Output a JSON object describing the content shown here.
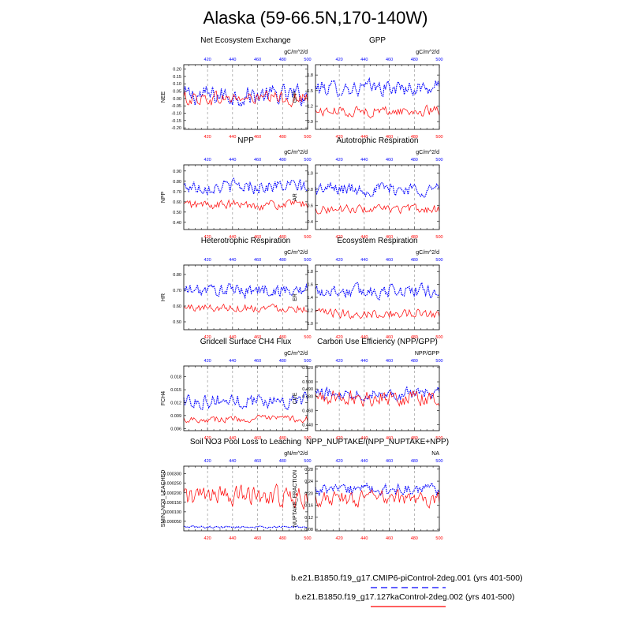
{
  "title": "Alaska (59-66.5N,170-140W)",
  "legend": [
    {
      "label": "b.e21.B1850.f19_g17.CMIP6-piControl-2deg.001 (yrs 401-500)",
      "color": "#0000ff",
      "style": "dashed"
    },
    {
      "label": "b.e21.B1850.f19_g17.127kaControl-2deg.002 (yrs 401-500)",
      "color": "#ff0000",
      "style": "solid"
    }
  ],
  "chart_data": [
    {
      "type": "line",
      "title": "Net Ecosystem Exchange",
      "units": "gC/m^2/d",
      "ylabel": "NEE",
      "xlim": [
        401,
        500
      ],
      "ylim": [
        -0.21,
        0.23
      ],
      "yticks": [
        0.2,
        0.15,
        0.1,
        0.05,
        0.0,
        -0.05,
        -0.1,
        -0.15,
        -0.2
      ],
      "ytick_labels": [
        "0.20",
        "0.15",
        "0.10",
        "0.05",
        "0.00",
        "-0.05",
        "-0.10",
        "-0.15",
        "-0.20"
      ],
      "xticks": [
        420,
        440,
        460,
        480,
        500
      ],
      "gridlines": [
        420,
        440,
        460,
        480
      ],
      "series": [
        {
          "color": "#0000ff",
          "dash": true,
          "mean": 0.02,
          "amp": 0.1
        },
        {
          "color": "#ff0000",
          "dash": false,
          "mean": 0.0,
          "amp": 0.07
        }
      ]
    },
    {
      "type": "line",
      "title": "GPP",
      "units": "gC/m^2/d",
      "ylabel": "GPP",
      "xlim": [
        401,
        500
      ],
      "ylim": [
        0.75,
        2.0
      ],
      "yticks": [
        1.8,
        1.5,
        1.2,
        0.9
      ],
      "ytick_labels": [
        "1.8",
        "1.5",
        "1.2",
        "0.9"
      ],
      "xticks": [
        420,
        440,
        460,
        480,
        500
      ],
      "gridlines": [
        420,
        440,
        460,
        480
      ],
      "series": [
        {
          "color": "#0000ff",
          "dash": true,
          "mean": 1.55,
          "amp": 0.22
        },
        {
          "color": "#ff0000",
          "dash": false,
          "mean": 1.1,
          "amp": 0.15
        }
      ]
    },
    {
      "type": "line",
      "title": "NPP",
      "units": "gC/m^2/d",
      "ylabel": "NPP",
      "xlim": [
        401,
        500
      ],
      "ylim": [
        0.33,
        0.96
      ],
      "yticks": [
        0.9,
        0.8,
        0.7,
        0.6,
        0.5,
        0.4
      ],
      "ytick_labels": [
        "0.90",
        "0.80",
        "0.70",
        "0.60",
        "0.50",
        "0.40"
      ],
      "xticks": [
        420,
        440,
        460,
        480,
        500
      ],
      "gridlines": [
        420,
        440,
        460,
        480
      ],
      "series": [
        {
          "color": "#0000ff",
          "dash": true,
          "mean": 0.75,
          "amp": 0.1
        },
        {
          "color": "#ff0000",
          "dash": false,
          "mean": 0.57,
          "amp": 0.07
        }
      ]
    },
    {
      "type": "line",
      "title": "Autotrophic Respiration",
      "units": "gC/m^2/d",
      "ylabel": "AR",
      "xlim": [
        401,
        500
      ],
      "ylim": [
        0.3,
        1.1
      ],
      "yticks": [
        1.0,
        0.8,
        0.6,
        0.4
      ],
      "ytick_labels": [
        "1.0",
        "0.8",
        "0.6",
        "0.4"
      ],
      "xticks": [
        420,
        440,
        460,
        480,
        500
      ],
      "gridlines": [
        420,
        440,
        460,
        480
      ],
      "series": [
        {
          "color": "#0000ff",
          "dash": true,
          "mean": 0.8,
          "amp": 0.12
        },
        {
          "color": "#ff0000",
          "dash": false,
          "mean": 0.55,
          "amp": 0.08
        }
      ]
    },
    {
      "type": "line",
      "title": "Heterotrophic Respiration",
      "units": "gC/m^2/d",
      "ylabel": "HR",
      "xlim": [
        401,
        500
      ],
      "ylim": [
        0.45,
        0.86
      ],
      "yticks": [
        0.8,
        0.7,
        0.6,
        0.5
      ],
      "ytick_labels": [
        "0.80",
        "0.70",
        "0.60",
        "0.50"
      ],
      "xticks": [
        420,
        440,
        460,
        480,
        500
      ],
      "gridlines": [
        420,
        440,
        460,
        480
      ],
      "series": [
        {
          "color": "#0000ff",
          "dash": true,
          "mean": 0.7,
          "amp": 0.06
        },
        {
          "color": "#ff0000",
          "dash": false,
          "mean": 0.59,
          "amp": 0.04
        }
      ]
    },
    {
      "type": "line",
      "title": "Ecosystem Respiration",
      "units": "gC/m^2/d",
      "ylabel": "ER",
      "xlim": [
        401,
        500
      ],
      "ylim": [
        0.9,
        1.9
      ],
      "yticks": [
        1.8,
        1.6,
        1.4,
        1.2,
        1.0
      ],
      "ytick_labels": [
        "1.8",
        "1.6",
        "1.4",
        "1.2",
        "1.0"
      ],
      "xticks": [
        420,
        440,
        460,
        480,
        500
      ],
      "gridlines": [
        420,
        440,
        460,
        480
      ],
      "series": [
        {
          "color": "#0000ff",
          "dash": true,
          "mean": 1.5,
          "amp": 0.16
        },
        {
          "color": "#ff0000",
          "dash": false,
          "mean": 1.15,
          "amp": 0.11
        }
      ]
    },
    {
      "type": "line",
      "title": "Gridcell Surface CH4 Flux",
      "units": "gC/m^2/d",
      "ylabel": "FCH4",
      "xlim": [
        401,
        500
      ],
      "ylim": [
        0.0055,
        0.0205
      ],
      "yticks": [
        0.018,
        0.015,
        0.012,
        0.009,
        0.006
      ],
      "ytick_labels": [
        "0.018",
        "0.015",
        "0.012",
        "0.009",
        "0.006"
      ],
      "xticks": [
        420,
        440,
        460,
        480,
        500
      ],
      "gridlines": [
        420,
        440,
        460,
        480
      ],
      "series": [
        {
          "color": "#0000ff",
          "dash": true,
          "mean": 0.0125,
          "amp": 0.0025
        },
        {
          "color": "#ff0000",
          "dash": false,
          "mean": 0.0082,
          "amp": 0.0012
        }
      ]
    },
    {
      "type": "line",
      "title": "Carbon Use Efficiency (NPP/GPP)",
      "units": "NPP/GPP",
      "ylabel": "CUE",
      "xlim": [
        401,
        500
      ],
      "ylim": [
        0.432,
        0.522
      ],
      "yticks": [
        0.52,
        0.5,
        0.49,
        0.48,
        0.46,
        0.44
      ],
      "ytick_labels": [
        "0.520",
        "0.500",
        "0.490",
        "0.480",
        "0.460",
        "0.440"
      ],
      "xticks": [
        420,
        440,
        460,
        480,
        500
      ],
      "gridlines": [
        420,
        440,
        460,
        480
      ],
      "series": [
        {
          "color": "#0000ff",
          "dash": true,
          "mean": 0.484,
          "amp": 0.012
        },
        {
          "color": "#ff0000",
          "dash": false,
          "mean": 0.478,
          "amp": 0.016
        }
      ]
    },
    {
      "type": "line",
      "title": "Soil NO3 Pool Loss to Leaching",
      "units": "gN/m^2/d",
      "ylabel": "SMIN_NO3_LEACHED",
      "xlim": [
        401,
        500
      ],
      "ylim": [
        0.0,
        0.00034
      ],
      "yticks": [
        0.0003,
        0.00025,
        0.0002,
        0.00015,
        0.0001,
        5e-05
      ],
      "ytick_labels": [
        "0.000300",
        "0.000250",
        "0.000200",
        "0.000150",
        "0.000100",
        "0.000050"
      ],
      "xticks": [
        420,
        440,
        460,
        480,
        500
      ],
      "gridlines": [
        420,
        440,
        460,
        480
      ],
      "series": [
        {
          "color": "#0000ff",
          "dash": true,
          "mean": 2e-05,
          "amp": 8e-06
        },
        {
          "color": "#ff0000",
          "dash": false,
          "mean": 0.00018,
          "amp": 8e-05
        }
      ]
    },
    {
      "type": "line",
      "title": "NPP_NUPTAKE/(NPP_NUPTAKE+NPP)",
      "units": "NA",
      "ylabel": "NUPTAKE_FRACTION",
      "xlim": [
        401,
        500
      ],
      "ylim": [
        0.075,
        0.29
      ],
      "yticks": [
        0.28,
        0.24,
        0.2,
        0.16,
        0.12,
        0.08
      ],
      "ytick_labels": [
        "0.28",
        "0.24",
        "0.20",
        "0.16",
        "0.12",
        "0.08"
      ],
      "xticks": [
        420,
        440,
        460,
        480,
        500
      ],
      "gridlines": [
        420,
        440,
        460,
        480
      ],
      "series": [
        {
          "color": "#0000ff",
          "dash": true,
          "mean": 0.21,
          "amp": 0.03
        },
        {
          "color": "#ff0000",
          "dash": false,
          "mean": 0.18,
          "amp": 0.04
        }
      ]
    }
  ]
}
